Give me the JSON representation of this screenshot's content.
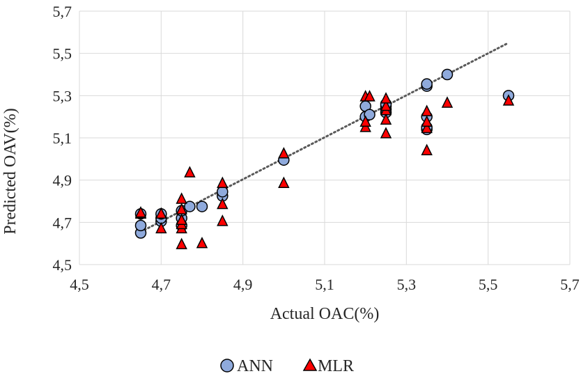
{
  "chart_data": {
    "type": "scatter",
    "title": "",
    "xlabel": "Actual OAC(%)",
    "ylabel": "Predicted OAV(%)",
    "xlim": [
      4.5,
      5.7
    ],
    "ylim": [
      4.5,
      5.7
    ],
    "xticks": [
      "4,5",
      "4,7",
      "4,9",
      "5,1",
      "5,3",
      "5,5",
      "5,7"
    ],
    "yticks": [
      "4,5",
      "4,7",
      "4,9",
      "5,1",
      "5,3",
      "5,5",
      "5,7"
    ],
    "grid": true,
    "legend_position": "bottom",
    "trendline": {
      "style": "dotted",
      "color": "#595959",
      "x": [
        4.65,
        5.55
      ],
      "y": [
        4.655,
        5.55
      ]
    },
    "series": [
      {
        "name": "ANN",
        "marker": "circle",
        "color": "#8FAADC",
        "points": [
          [
            4.65,
            4.65
          ],
          [
            4.65,
            4.685
          ],
          [
            4.65,
            4.74
          ],
          [
            4.7,
            4.705
          ],
          [
            4.7,
            4.72
          ],
          [
            4.7,
            4.74
          ],
          [
            4.75,
            4.685
          ],
          [
            4.75,
            4.72
          ],
          [
            4.75,
            4.755
          ],
          [
            4.77,
            4.775
          ],
          [
            4.8,
            4.775
          ],
          [
            4.85,
            4.825
          ],
          [
            4.85,
            4.845
          ],
          [
            5.0,
            4.995
          ],
          [
            5.2,
            5.2
          ],
          [
            5.2,
            5.25
          ],
          [
            5.21,
            5.21
          ],
          [
            5.25,
            5.22
          ],
          [
            5.25,
            5.235
          ],
          [
            5.25,
            5.25
          ],
          [
            5.25,
            5.26
          ],
          [
            5.35,
            5.14
          ],
          [
            5.35,
            5.15
          ],
          [
            5.35,
            5.2
          ],
          [
            5.35,
            5.345
          ],
          [
            5.35,
            5.355
          ],
          [
            5.4,
            5.4
          ],
          [
            5.55,
            5.3
          ]
        ]
      },
      {
        "name": "MLR",
        "marker": "triangle",
        "color": "#FF0000",
        "points": [
          [
            4.65,
            4.74
          ],
          [
            4.65,
            4.745
          ],
          [
            4.7,
            4.67
          ],
          [
            4.7,
            4.74
          ],
          [
            4.75,
            4.595
          ],
          [
            4.75,
            4.67
          ],
          [
            4.75,
            4.69
          ],
          [
            4.75,
            4.71
          ],
          [
            4.75,
            4.76
          ],
          [
            4.75,
            4.81
          ],
          [
            4.77,
            4.935
          ],
          [
            4.8,
            4.6
          ],
          [
            4.85,
            4.705
          ],
          [
            4.85,
            4.785
          ],
          [
            4.85,
            4.885
          ],
          [
            5.0,
            4.885
          ],
          [
            5.0,
            5.025
          ],
          [
            5.2,
            5.15
          ],
          [
            5.2,
            5.175
          ],
          [
            5.2,
            5.295
          ],
          [
            5.21,
            5.295
          ],
          [
            5.25,
            5.12
          ],
          [
            5.25,
            5.185
          ],
          [
            5.25,
            5.23
          ],
          [
            5.25,
            5.25
          ],
          [
            5.25,
            5.285
          ],
          [
            5.35,
            5.04
          ],
          [
            5.35,
            5.145
          ],
          [
            5.35,
            5.175
          ],
          [
            5.35,
            5.225
          ],
          [
            5.4,
            5.265
          ],
          [
            5.55,
            5.275
          ]
        ]
      }
    ]
  }
}
